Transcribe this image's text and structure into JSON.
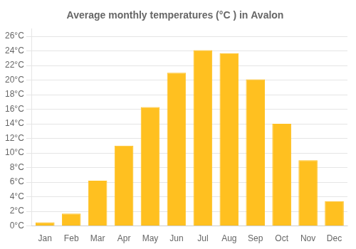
{
  "chart_data": {
    "type": "bar",
    "title": "Average monthly temperatures (°C ) in Avalon",
    "categories": [
      "Jan",
      "Feb",
      "Mar",
      "Apr",
      "May",
      "Jun",
      "Jul",
      "Aug",
      "Sep",
      "Oct",
      "Nov",
      "Dec"
    ],
    "values": [
      0.5,
      1.7,
      6.2,
      11.0,
      16.3,
      21.0,
      24.1,
      23.7,
      20.1,
      14.0,
      9.0,
      3.4
    ],
    "color": "#FFC020",
    "ylim": [
      0,
      27
    ],
    "yticks": [
      {
        "value": 0,
        "label": "0°C"
      },
      {
        "value": 2,
        "label": "2°C"
      },
      {
        "value": 4,
        "label": "4°C"
      },
      {
        "value": 6,
        "label": "6°C"
      },
      {
        "value": 8,
        "label": "8°C"
      },
      {
        "value": 10,
        "label": "10°C"
      },
      {
        "value": 12,
        "label": "12°C"
      },
      {
        "value": 14,
        "label": "14°C"
      },
      {
        "value": 16,
        "label": "16°C"
      },
      {
        "value": 18,
        "label": "18°C"
      },
      {
        "value": 20,
        "label": "20°C"
      },
      {
        "value": 22,
        "label": "22°C"
      },
      {
        "value": 24,
        "label": "24°C"
      },
      {
        "value": 26,
        "label": "26°C"
      }
    ],
    "grid": true
  }
}
